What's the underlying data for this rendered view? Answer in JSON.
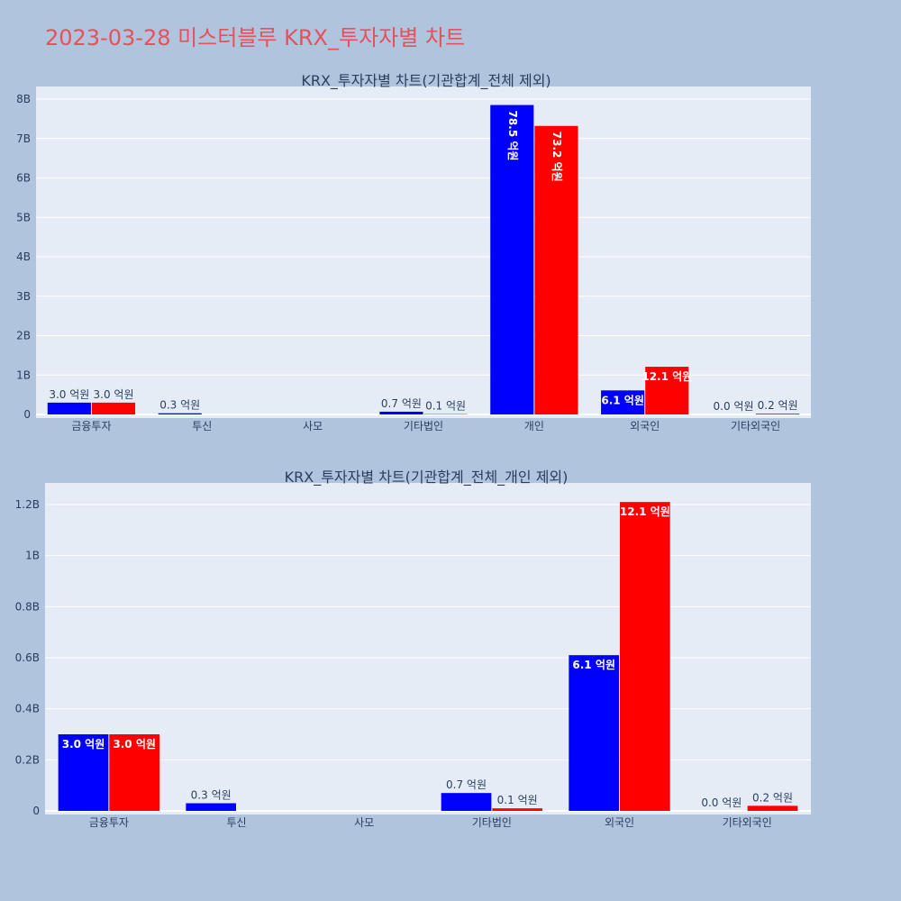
{
  "page": {
    "title": "2023-03-28 미스터블루 KRX_투자자별 차트"
  },
  "colors": {
    "background": "#b0c4de",
    "plot_background": "#e5ecf6",
    "series_1": "#0000ff",
    "series_2": "#ff0000",
    "title": "#e8505b",
    "text": "#2a3f5f"
  },
  "chart_data": [
    {
      "type": "bar",
      "title": "KRX_투자자별 차트(기관합계_전체 제외)",
      "categories": [
        "금융투자",
        "투신",
        "사모",
        "기타법인",
        "개인",
        "외국인",
        "기타외국인"
      ],
      "series": [
        {
          "color": "#0000ff",
          "values": [
            300000000,
            30000000,
            0,
            70000000,
            7850000000,
            610000000,
            0
          ],
          "labels": [
            "3.0 억원",
            "0.3 억원",
            "",
            "0.7 억원",
            "78.5 억원",
            "6.1 억원",
            "0.0 억원"
          ]
        },
        {
          "color": "#ff0000",
          "values": [
            300000000,
            0,
            0,
            10000000,
            7320000000,
            1210000000,
            20000000
          ],
          "labels": [
            "3.0 억원",
            "",
            "",
            "0.1 억원",
            "73.2 억원",
            "12.1 억원",
            "0.2 억원"
          ]
        }
      ],
      "ylim": [
        0,
        8200000000
      ],
      "yticks": [
        0,
        1000000000,
        2000000000,
        3000000000,
        4000000000,
        5000000000,
        6000000000,
        7000000000,
        8000000000
      ],
      "ytick_labels": [
        "0",
        "1B",
        "2B",
        "3B",
        "4B",
        "5B",
        "6B",
        "7B",
        "8B"
      ],
      "grid": true,
      "legend": "none"
    },
    {
      "type": "bar",
      "title": "KRX_투자자별 차트(기관합계_전체_개인 제외)",
      "categories": [
        "금융투자",
        "투신",
        "사모",
        "기타법인",
        "외국인",
        "기타외국인"
      ],
      "series": [
        {
          "color": "#0000ff",
          "values": [
            300000000,
            30000000,
            0,
            70000000,
            610000000,
            0
          ],
          "labels": [
            "3.0 억원",
            "0.3 억원",
            "",
            "0.7 억원",
            "6.1 억원",
            "0.0 억원"
          ]
        },
        {
          "color": "#ff0000",
          "values": [
            300000000,
            0,
            0,
            10000000,
            1210000000,
            20000000
          ],
          "labels": [
            "3.0 억원",
            "",
            "",
            "0.1 억원",
            "12.1 억원",
            "0.2 억원"
          ]
        }
      ],
      "ylim": [
        0,
        1280000000
      ],
      "yticks": [
        0,
        200000000,
        400000000,
        600000000,
        800000000,
        1000000000,
        1200000000
      ],
      "ytick_labels": [
        "0",
        "0.2B",
        "0.4B",
        "0.6B",
        "0.8B",
        "1B",
        "1.2B"
      ],
      "grid": true,
      "legend": "none"
    }
  ]
}
